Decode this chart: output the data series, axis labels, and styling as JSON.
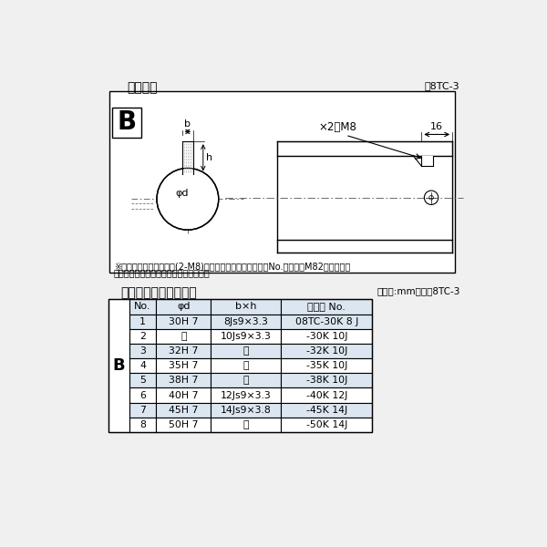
{
  "title_top": "軸穴形状",
  "fig_num": "囸8TC-3",
  "table_title": "軸穴形状コード一覧表",
  "table_unit": "（単位:mm）　袆8TC-3",
  "diagram_note1": "※セットボルト用タップ(2-M8)が必要な場合は右記コードNo.の末尾にM82を付ける。",
  "diagram_note2": "（セットボルトは付属されています。）",
  "label_b": "B",
  "label_dim_b": "b",
  "label_dim_h": "h",
  "label_phi_d": "φd",
  "label_m8": "×2－M8",
  "label_16": "16",
  "col_headers": [
    "No.",
    "φd",
    "b×h",
    "コード No."
  ],
  "row_label": "B",
  "rows": [
    [
      "1",
      "30H 7",
      "8Js9×3.3",
      "08TC-30K 8 J"
    ],
    [
      "2",
      "〃",
      "10Js9×3.3",
      "-30K 10J"
    ],
    [
      "3",
      "32H 7",
      "〃",
      "-32K 10J"
    ],
    [
      "4",
      "35H 7",
      "〃",
      "-35K 10J"
    ],
    [
      "5",
      "38H 7",
      "〃",
      "-38K 10J"
    ],
    [
      "6",
      "40H 7",
      "12Js9×3.3",
      "-40K 12J"
    ],
    [
      "7",
      "45H 7",
      "14Js9×3.8",
      "-45K 14J"
    ],
    [
      "8",
      "50H 7",
      "〃",
      "-50K 14J"
    ]
  ],
  "bg_color": "#f0f0f0",
  "border_color": "#000000",
  "table_row_odd": "#dce6f1",
  "table_row_even": "#ffffff",
  "table_header_bg": "#dce6f1",
  "line_color": "#000000",
  "gray_line": "#555555"
}
